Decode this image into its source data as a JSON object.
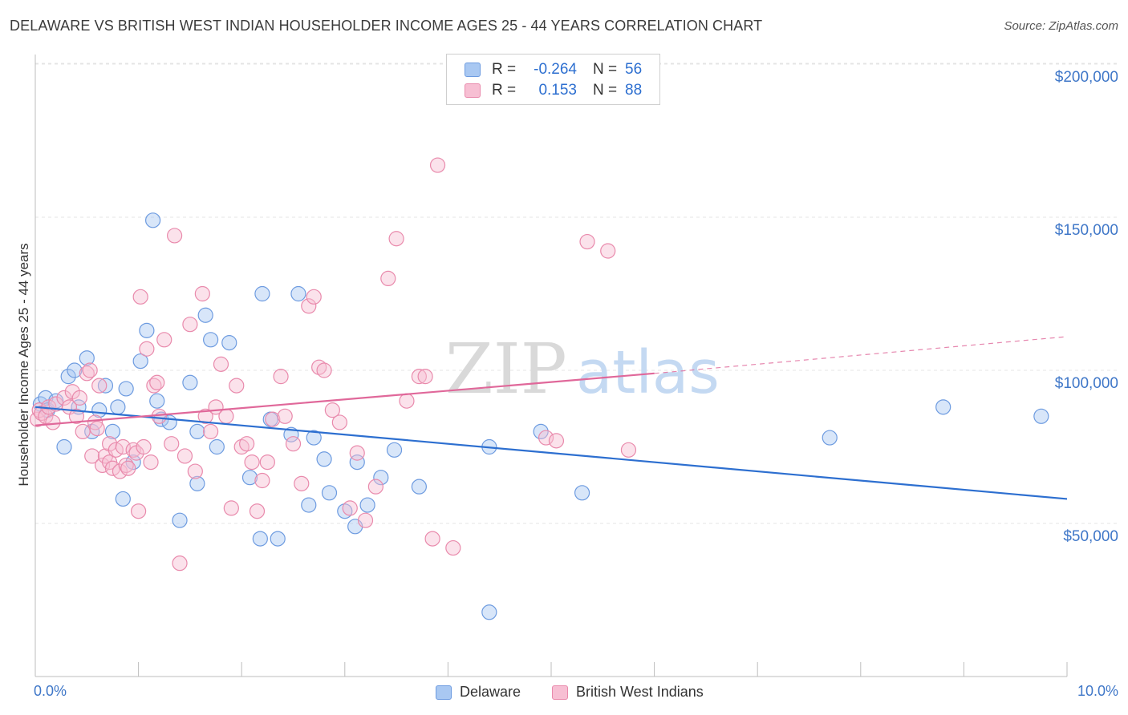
{
  "title": "DELAWARE VS BRITISH WEST INDIAN HOUSEHOLDER INCOME AGES 25 - 44 YEARS CORRELATION CHART",
  "source": "Source: ZipAtlas.com",
  "watermark": {
    "zip": "ZIP",
    "atlas": "atlas"
  },
  "legend": {
    "rows": [
      {
        "r_label": "R =",
        "r_value": "-0.264",
        "n_label": "N =",
        "n_value": "56",
        "color": "#a9c8f2",
        "border": "#6d9be0"
      },
      {
        "r_label": "R =",
        "r_value": "0.153",
        "n_label": "N =",
        "n_value": "88",
        "color": "#f7bfd3",
        "border": "#e98aac"
      }
    ]
  },
  "bottom_legend": [
    {
      "label": "Delaware",
      "color": "#a9c8f2",
      "border": "#6d9be0"
    },
    {
      "label": "British West Indians",
      "color": "#f7bfd3",
      "border": "#e98aac"
    }
  ],
  "chart_data": {
    "type": "scatter",
    "title": "DELAWARE VS BRITISH WEST INDIAN HOUSEHOLDER INCOME AGES 25 - 44 YEARS CORRELATION CHART",
    "xlabel": "",
    "ylabel": "Householder Income Ages 25 - 44 years",
    "xlim": [
      0,
      10
    ],
    "ylim": [
      0,
      210000
    ],
    "x_tick_labels": [
      "0.0%",
      "10.0%"
    ],
    "y_ticks": [
      50000,
      100000,
      150000,
      200000
    ],
    "y_tick_labels": [
      "$50,000",
      "$100,000",
      "$150,000",
      "$200,000"
    ],
    "grid": true,
    "legend_position": "top-center",
    "series": [
      {
        "name": "Delaware",
        "color": "#6d9be0",
        "fill": "#a9c8f2",
        "trend_color": "#2d6fd0",
        "trend": {
          "x": [
            0,
            10
          ],
          "y": [
            88000,
            58000
          ]
        },
        "points": [
          [
            0.05,
            89000
          ],
          [
            0.1,
            91000
          ],
          [
            0.12,
            87000
          ],
          [
            0.2,
            90000
          ],
          [
            0.28,
            75000
          ],
          [
            0.32,
            98000
          ],
          [
            0.38,
            100000
          ],
          [
            0.42,
            88000
          ],
          [
            0.5,
            104000
          ],
          [
            0.55,
            80000
          ],
          [
            0.62,
            87000
          ],
          [
            0.68,
            95000
          ],
          [
            0.75,
            80000
          ],
          [
            0.8,
            88000
          ],
          [
            0.85,
            58000
          ],
          [
            0.88,
            94000
          ],
          [
            0.95,
            70000
          ],
          [
            1.02,
            103000
          ],
          [
            1.08,
            113000
          ],
          [
            1.14,
            149000
          ],
          [
            1.18,
            90000
          ],
          [
            1.22,
            84000
          ],
          [
            1.3,
            83000
          ],
          [
            1.4,
            51000
          ],
          [
            1.5,
            96000
          ],
          [
            1.57,
            63000
          ],
          [
            1.57,
            80000
          ],
          [
            1.65,
            118000
          ],
          [
            1.7,
            110000
          ],
          [
            1.76,
            75000
          ],
          [
            1.88,
            109000
          ],
          [
            2.08,
            65000
          ],
          [
            2.18,
            45000
          ],
          [
            2.2,
            125000
          ],
          [
            2.28,
            84000
          ],
          [
            2.35,
            45000
          ],
          [
            2.48,
            79000
          ],
          [
            2.55,
            125000
          ],
          [
            2.65,
            56000
          ],
          [
            2.7,
            78000
          ],
          [
            2.8,
            71000
          ],
          [
            2.85,
            60000
          ],
          [
            3.0,
            54000
          ],
          [
            3.1,
            49000
          ],
          [
            3.12,
            70000
          ],
          [
            3.22,
            56000
          ],
          [
            3.35,
            65000
          ],
          [
            3.48,
            74000
          ],
          [
            3.72,
            62000
          ],
          [
            4.4,
            75000
          ],
          [
            4.4,
            21000
          ],
          [
            4.9,
            80000
          ],
          [
            5.3,
            60000
          ],
          [
            7.7,
            78000
          ],
          [
            8.8,
            88000
          ],
          [
            9.75,
            85000
          ]
        ]
      },
      {
        "name": "British West Indians",
        "color": "#e98aac",
        "fill": "#f7bfd3",
        "trend_color": "#e0689a",
        "trend": {
          "x": [
            0,
            6
          ],
          "y": [
            82000,
            99000
          ]
        },
        "trend_dashed": {
          "x": [
            6,
            10
          ],
          "y": [
            99000,
            111000
          ]
        },
        "points": [
          [
            0.02,
            84000
          ],
          [
            0.04,
            87000
          ],
          [
            0.06,
            86000
          ],
          [
            0.1,
            85000
          ],
          [
            0.13,
            88000
          ],
          [
            0.17,
            83000
          ],
          [
            0.2,
            89000
          ],
          [
            0.28,
            91000
          ],
          [
            0.33,
            88000
          ],
          [
            0.36,
            93000
          ],
          [
            0.4,
            85000
          ],
          [
            0.43,
            91000
          ],
          [
            0.46,
            80000
          ],
          [
            0.5,
            99000
          ],
          [
            0.53,
            100000
          ],
          [
            0.55,
            72000
          ],
          [
            0.58,
            83000
          ],
          [
            0.6,
            81000
          ],
          [
            0.62,
            95000
          ],
          [
            0.65,
            69000
          ],
          [
            0.68,
            72000
          ],
          [
            0.72,
            70000
          ],
          [
            0.72,
            76000
          ],
          [
            0.75,
            68000
          ],
          [
            0.78,
            74000
          ],
          [
            0.82,
            67000
          ],
          [
            0.85,
            75000
          ],
          [
            0.88,
            69000
          ],
          [
            0.9,
            68000
          ],
          [
            0.95,
            74000
          ],
          [
            0.98,
            73000
          ],
          [
            1.0,
            54000
          ],
          [
            1.02,
            124000
          ],
          [
            1.05,
            75000
          ],
          [
            1.08,
            107000
          ],
          [
            1.12,
            70000
          ],
          [
            1.15,
            95000
          ],
          [
            1.18,
            96000
          ],
          [
            1.2,
            85000
          ],
          [
            1.25,
            110000
          ],
          [
            1.32,
            76000
          ],
          [
            1.35,
            144000
          ],
          [
            1.4,
            37000
          ],
          [
            1.45,
            72000
          ],
          [
            1.5,
            115000
          ],
          [
            1.55,
            67000
          ],
          [
            1.62,
            125000
          ],
          [
            1.65,
            85000
          ],
          [
            1.7,
            80000
          ],
          [
            1.75,
            88000
          ],
          [
            1.8,
            102000
          ],
          [
            1.85,
            85000
          ],
          [
            1.9,
            55000
          ],
          [
            1.95,
            95000
          ],
          [
            2.0,
            75000
          ],
          [
            2.05,
            76000
          ],
          [
            2.1,
            70000
          ],
          [
            2.15,
            54000
          ],
          [
            2.2,
            64000
          ],
          [
            2.25,
            70000
          ],
          [
            2.3,
            84000
          ],
          [
            2.38,
            98000
          ],
          [
            2.42,
            85000
          ],
          [
            2.5,
            76000
          ],
          [
            2.58,
            63000
          ],
          [
            2.65,
            121000
          ],
          [
            2.7,
            124000
          ],
          [
            2.75,
            101000
          ],
          [
            2.8,
            100000
          ],
          [
            2.88,
            87000
          ],
          [
            2.95,
            83000
          ],
          [
            3.05,
            55000
          ],
          [
            3.12,
            73000
          ],
          [
            3.2,
            51000
          ],
          [
            3.3,
            62000
          ],
          [
            3.42,
            130000
          ],
          [
            3.5,
            143000
          ],
          [
            3.6,
            90000
          ],
          [
            3.72,
            98000
          ],
          [
            3.78,
            98000
          ],
          [
            3.85,
            45000
          ],
          [
            3.9,
            167000
          ],
          [
            4.05,
            42000
          ],
          [
            4.95,
            78000
          ],
          [
            5.05,
            77000
          ],
          [
            5.35,
            142000
          ],
          [
            5.55,
            139000
          ],
          [
            5.75,
            74000
          ]
        ]
      }
    ]
  }
}
